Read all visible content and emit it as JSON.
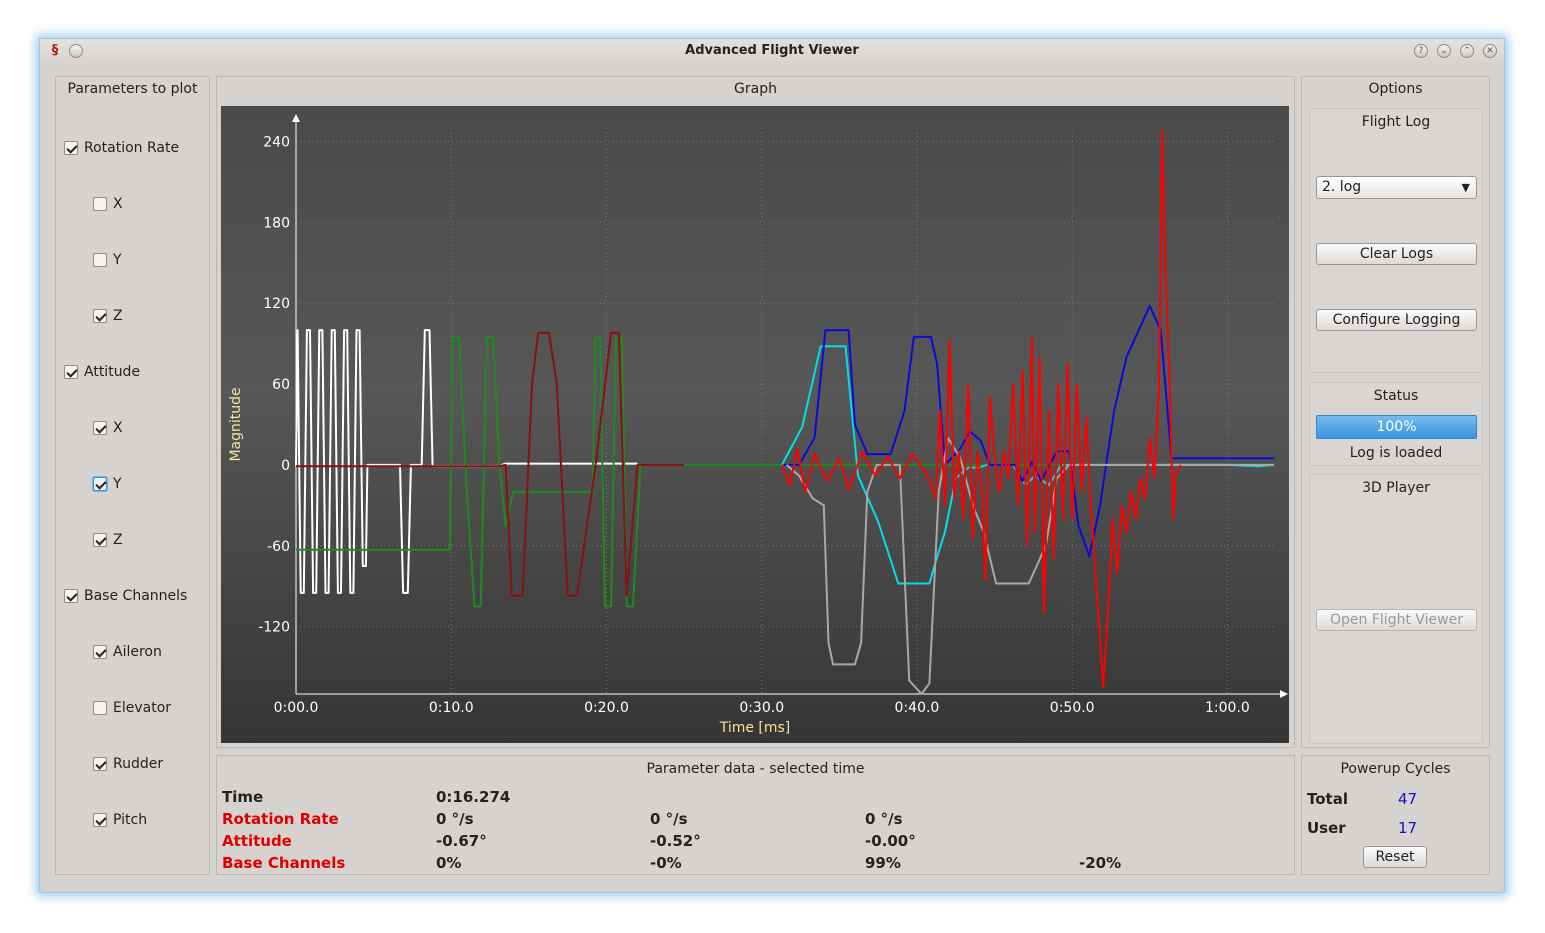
{
  "window": {
    "title": "Advanced Flight Viewer",
    "app_icon": "flight-app-icon"
  },
  "params_panel": {
    "title": "Parameters to plot",
    "items": [
      {
        "label": "Rotation Rate",
        "checked": true,
        "level": 0
      },
      {
        "label": "X",
        "checked": false,
        "level": 1
      },
      {
        "label": "Y",
        "checked": false,
        "level": 1
      },
      {
        "label": "Z",
        "checked": true,
        "level": 1
      },
      {
        "label": "Attitude",
        "checked": true,
        "level": 0
      },
      {
        "label": "X",
        "checked": true,
        "level": 1
      },
      {
        "label": "Y",
        "checked": true,
        "level": 1,
        "focused": true
      },
      {
        "label": "Z",
        "checked": true,
        "level": 1
      },
      {
        "label": "Base Channels",
        "checked": true,
        "level": 0
      },
      {
        "label": "Aileron",
        "checked": true,
        "level": 1
      },
      {
        "label": "Elevator",
        "checked": false,
        "level": 1
      },
      {
        "label": "Rudder",
        "checked": true,
        "level": 1
      },
      {
        "label": "Pitch",
        "checked": true,
        "level": 1
      }
    ]
  },
  "graph_panel": {
    "title": "Graph"
  },
  "chart_data": {
    "type": "line",
    "title": "",
    "xlabel": "Time [ms]",
    "ylabel": "Magnitude",
    "xlim": [
      0,
      63
    ],
    "ylim": [
      -170,
      250
    ],
    "x_ticks": [
      {
        "value": 0,
        "label": "0:00.0"
      },
      {
        "value": 10,
        "label": "0:10.0"
      },
      {
        "value": 20,
        "label": "0:20.0"
      },
      {
        "value": 30,
        "label": "0:30.0"
      },
      {
        "value": 40,
        "label": "0:40.0"
      },
      {
        "value": 50,
        "label": "0:50.0"
      },
      {
        "value": 60,
        "label": "1:00.0"
      }
    ],
    "y_ticks": [
      {
        "value": 240,
        "label": "240"
      },
      {
        "value": 180,
        "label": "180"
      },
      {
        "value": 120,
        "label": "120"
      },
      {
        "value": 60,
        "label": "60"
      },
      {
        "value": 0,
        "label": "0"
      },
      {
        "value": -60,
        "label": "-60"
      },
      {
        "value": -120,
        "label": "-120"
      }
    ],
    "grid": true,
    "series": [
      {
        "color": "#ffffff",
        "points": [
          [
            0,
            -1
          ],
          [
            0.1,
            100
          ],
          [
            0.3,
            -95
          ],
          [
            0.5,
            -95
          ],
          [
            0.7,
            100
          ],
          [
            0.9,
            100
          ],
          [
            1.1,
            -95
          ],
          [
            1.3,
            -95
          ],
          [
            1.5,
            100
          ],
          [
            1.7,
            100
          ],
          [
            1.9,
            -95
          ],
          [
            2.1,
            -95
          ],
          [
            2.3,
            100
          ],
          [
            2.5,
            100
          ],
          [
            2.7,
            -95
          ],
          [
            2.9,
            -95
          ],
          [
            3.1,
            100
          ],
          [
            3.3,
            100
          ],
          [
            3.5,
            -95
          ],
          [
            3.7,
            -95
          ],
          [
            3.9,
            100
          ],
          [
            4.1,
            100
          ],
          [
            4.3,
            -75
          ],
          [
            4.5,
            -75
          ],
          [
            4.6,
            0
          ],
          [
            6.7,
            0
          ],
          [
            6.9,
            -95
          ],
          [
            7.2,
            -95
          ],
          [
            7.4,
            0
          ],
          [
            8.1,
            0
          ],
          [
            8.3,
            100
          ],
          [
            8.6,
            100
          ],
          [
            8.8,
            -1
          ],
          [
            10,
            -1
          ],
          [
            13,
            -1
          ],
          [
            13.5,
            1
          ],
          [
            22,
            1
          ]
        ]
      },
      {
        "color": "#1f8a1f",
        "points": [
          [
            0,
            -63
          ],
          [
            9.9,
            -63
          ],
          [
            10.1,
            95
          ],
          [
            10.5,
            95
          ],
          [
            11,
            -20
          ],
          [
            11.5,
            -105
          ],
          [
            11.9,
            -105
          ],
          [
            12.3,
            95
          ],
          [
            12.7,
            95
          ],
          [
            13.1,
            0
          ],
          [
            13.5,
            -45
          ],
          [
            14,
            -20
          ],
          [
            19.1,
            -20
          ],
          [
            19.3,
            95
          ],
          [
            19.6,
            95
          ],
          [
            19.9,
            -105
          ],
          [
            20.3,
            -105
          ],
          [
            20.6,
            95
          ],
          [
            21,
            95
          ],
          [
            21.3,
            -105
          ],
          [
            21.7,
            -105
          ],
          [
            22.2,
            0
          ],
          [
            63,
            0
          ]
        ]
      },
      {
        "color": "#8b1010",
        "points": [
          [
            0,
            -1
          ],
          [
            13,
            -1
          ],
          [
            13.5,
            0
          ],
          [
            13.9,
            -97
          ],
          [
            14.6,
            -97
          ],
          [
            15.2,
            60
          ],
          [
            15.6,
            98
          ],
          [
            16.3,
            98
          ],
          [
            16.8,
            60
          ],
          [
            17.5,
            -97
          ],
          [
            18.1,
            -97
          ],
          [
            19.3,
            0
          ],
          [
            20.3,
            98
          ],
          [
            20.8,
            98
          ],
          [
            21.3,
            -97
          ],
          [
            22,
            0
          ],
          [
            25,
            0
          ]
        ]
      },
      {
        "color": "#00e0e0",
        "points": [
          [
            31.3,
            0
          ],
          [
            32.6,
            28
          ],
          [
            33.8,
            88
          ],
          [
            35.4,
            88
          ],
          [
            36.2,
            -8
          ],
          [
            37.5,
            -42
          ],
          [
            38.8,
            -88
          ],
          [
            40.8,
            -88
          ],
          [
            41.2,
            -72
          ],
          [
            41.8,
            -50
          ],
          [
            42.5,
            -10
          ],
          [
            43.3,
            -2
          ],
          [
            44,
            -2
          ],
          [
            44.5,
            0
          ],
          [
            46.2,
            0
          ],
          [
            47,
            -15
          ],
          [
            47.6,
            -8
          ],
          [
            48.5,
            -15
          ],
          [
            49.3,
            0
          ],
          [
            60,
            0
          ],
          [
            62,
            -1
          ],
          [
            63,
            0
          ]
        ]
      },
      {
        "color": "#0a0ad8",
        "points": [
          [
            31.4,
            0
          ],
          [
            32.4,
            0
          ],
          [
            33.4,
            20
          ],
          [
            34.1,
            100
          ],
          [
            35.6,
            100
          ],
          [
            36,
            30
          ],
          [
            36.8,
            8
          ],
          [
            38.3,
            8
          ],
          [
            39.2,
            40
          ],
          [
            39.8,
            95
          ],
          [
            40.9,
            95
          ],
          [
            41.3,
            75
          ],
          [
            41.8,
            0
          ],
          [
            42.8,
            12
          ],
          [
            43.4,
            25
          ],
          [
            44.1,
            18
          ],
          [
            44.7,
            0
          ],
          [
            46.3,
            0
          ],
          [
            46.8,
            -12
          ],
          [
            47.4,
            2
          ],
          [
            48,
            -12
          ],
          [
            49,
            10
          ],
          [
            49.8,
            10
          ],
          [
            50.4,
            -45
          ],
          [
            51.1,
            -68
          ],
          [
            51.8,
            -30
          ],
          [
            52.7,
            40
          ],
          [
            53.5,
            80
          ],
          [
            55,
            118
          ],
          [
            55.7,
            100
          ],
          [
            56.4,
            5
          ],
          [
            60,
            5
          ],
          [
            63,
            5
          ]
        ]
      },
      {
        "color": "#a8a8a8",
        "points": [
          [
            31.6,
            0
          ],
          [
            32.4,
            -8
          ],
          [
            33.3,
            -25
          ],
          [
            34,
            -30
          ],
          [
            34.3,
            -132
          ],
          [
            34.6,
            -148
          ],
          [
            36,
            -148
          ],
          [
            36.4,
            -132
          ],
          [
            36.8,
            -20
          ],
          [
            37.4,
            0
          ],
          [
            38.9,
            0
          ],
          [
            39.5,
            -160
          ],
          [
            40.3,
            -170
          ],
          [
            40.8,
            -162
          ],
          [
            41.4,
            -20
          ],
          [
            42,
            20
          ],
          [
            42.8,
            5
          ],
          [
            43.6,
            -30
          ],
          [
            44.3,
            -50
          ],
          [
            45.1,
            -88
          ],
          [
            47.2,
            -88
          ],
          [
            48.3,
            -60
          ],
          [
            49,
            -10
          ],
          [
            49.8,
            0
          ],
          [
            63,
            0
          ]
        ]
      },
      {
        "color": "#ff0000",
        "points": [
          [
            31.3,
            0
          ],
          [
            31.8,
            -15
          ],
          [
            32.3,
            12
          ],
          [
            32.8,
            -20
          ],
          [
            33.4,
            8
          ],
          [
            34.2,
            -12
          ],
          [
            35,
            5
          ],
          [
            35.6,
            -18
          ],
          [
            36.5,
            10
          ],
          [
            37.3,
            -8
          ],
          [
            38.1,
            6
          ],
          [
            38.9,
            -10
          ],
          [
            39.7,
            8
          ],
          [
            40.6,
            -6
          ],
          [
            41.2,
            -25
          ],
          [
            41.5,
            40
          ],
          [
            41.8,
            -30
          ],
          [
            42.1,
            92
          ],
          [
            42.4,
            -25
          ],
          [
            42.7,
            10
          ],
          [
            43,
            -40
          ],
          [
            43.3,
            60
          ],
          [
            43.6,
            -55
          ],
          [
            43.9,
            10
          ],
          [
            44.2,
            -20
          ],
          [
            44.4,
            -85
          ],
          [
            44.7,
            50
          ],
          [
            45,
            5
          ],
          [
            45.3,
            -20
          ],
          [
            45.6,
            10
          ],
          [
            45.9,
            -10
          ],
          [
            46.2,
            60
          ],
          [
            46.5,
            -30
          ],
          [
            46.8,
            70
          ],
          [
            47.1,
            -60
          ],
          [
            47.4,
            95
          ],
          [
            47.6,
            -50
          ],
          [
            47.9,
            80
          ],
          [
            48.2,
            -110
          ],
          [
            48.5,
            40
          ],
          [
            48.8,
            -70
          ],
          [
            49.1,
            60
          ],
          [
            49.4,
            -40
          ],
          [
            49.7,
            75
          ],
          [
            50,
            -40
          ],
          [
            50.3,
            60
          ],
          [
            50.6,
            -20
          ],
          [
            50.9,
            35
          ],
          [
            51.2,
            -30
          ],
          [
            51.5,
            -80
          ],
          [
            51.8,
            -130
          ],
          [
            52,
            -165
          ],
          [
            52.3,
            -110
          ],
          [
            52.6,
            -40
          ],
          [
            52.9,
            -80
          ],
          [
            53.2,
            -30
          ],
          [
            53.5,
            -50
          ],
          [
            53.8,
            -20
          ],
          [
            54.1,
            -40
          ],
          [
            54.4,
            -10
          ],
          [
            54.7,
            -25
          ],
          [
            55,
            20
          ],
          [
            55.3,
            -10
          ],
          [
            55.6,
            60
          ],
          [
            55.8,
            248
          ],
          [
            56,
            150
          ],
          [
            56.3,
            50
          ],
          [
            56.5,
            -40
          ],
          [
            56.7,
            -5
          ],
          [
            57,
            0
          ]
        ]
      }
    ]
  },
  "options_panel": {
    "title": "Options",
    "flight_log": {
      "title": "Flight Log",
      "selected": "2. log",
      "clear_label": "Clear Logs",
      "configure_label": "Configure Logging"
    },
    "status": {
      "title": "Status",
      "progress_percent": 100,
      "progress_text": "100%",
      "message": "Log is loaded"
    },
    "player": {
      "title": "3D Player",
      "open_label": "Open Flight Viewer"
    }
  },
  "param_data": {
    "title": "Parameter data - selected time",
    "rows": [
      {
        "label": "Time",
        "label_color": "#222222",
        "values": [
          "0:16.274"
        ]
      },
      {
        "label": "Rotation Rate",
        "label_color": "#e00000",
        "values": [
          "0 °/s",
          "0 °/s",
          "0 °/s"
        ]
      },
      {
        "label": "Attitude",
        "label_color": "#e00000",
        "values": [
          "-0.67°",
          "-0.52°",
          "-0.00°"
        ]
      },
      {
        "label": "Base Channels",
        "label_color": "#e00000",
        "values": [
          "0%",
          "-0%",
          "99%",
          "-20%"
        ]
      }
    ]
  },
  "powerup": {
    "title": "Powerup Cycles",
    "total_label": "Total",
    "total_value": "47",
    "user_label": "User",
    "user_value": "17",
    "reset_label": "Reset",
    "value_color": "#1111cc"
  }
}
